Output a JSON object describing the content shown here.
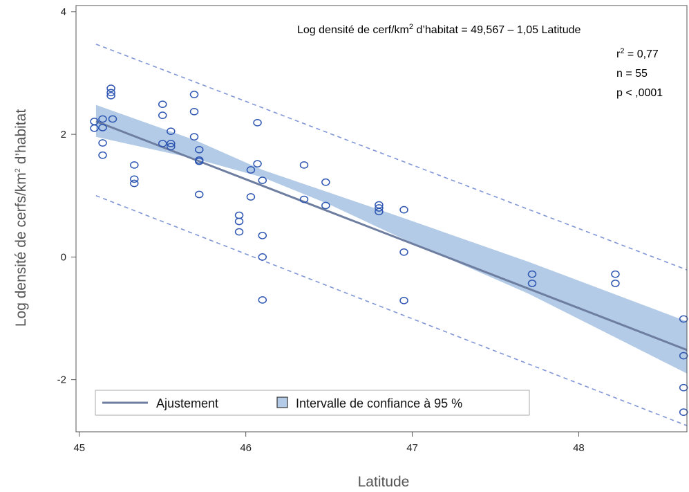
{
  "chart_data": {
    "type": "scatter",
    "xlabel": "Latitude",
    "ylabel_parts": {
      "before": "Log densité de cerfs/km",
      "sup": "2",
      "after": " d’habitat"
    },
    "xlim": [
      44.98,
      48.65
    ],
    "ylim": [
      -2.85,
      4.1
    ],
    "x_ticks": [
      45,
      46,
      47,
      48
    ],
    "y_ticks": [
      -2,
      0,
      2,
      4
    ],
    "x_tick_labels": [
      "45",
      "46",
      "47",
      "48"
    ],
    "y_tick_labels": [
      "-2",
      "0",
      "2",
      "4"
    ],
    "grid": false,
    "equation_parts": {
      "before": "Log densité de cerf/km",
      "sup": "2",
      "after": " d’habitat = 49,567 – 1,05 Latitude"
    },
    "stats": {
      "r2_parts": {
        "before": "r",
        "sup": "2",
        "after": " = 0,77"
      },
      "n": "n = 55",
      "p": "p < ,0001"
    },
    "fit": {
      "intercept": 49.567,
      "slope": -1.05,
      "x_range": [
        45.1,
        48.65
      ]
    },
    "confidence_band": [
      [
        45.1,
        2.48,
        1.96
      ],
      [
        45.7,
        1.9,
        1.6
      ],
      [
        46.1,
        1.42,
        1.3
      ],
      [
        46.5,
        1.05,
        0.86
      ],
      [
        46.9,
        0.68,
        0.35
      ],
      [
        47.7,
        -0.08,
        -0.6
      ],
      [
        48.65,
        -1.05,
        -1.9
      ]
    ],
    "prediction_upper": [
      [
        45.1,
        3.47
      ],
      [
        48.65,
        -0.21
      ]
    ],
    "prediction_lower": [
      [
        45.1,
        1.0
      ],
      [
        48.65,
        -2.75
      ]
    ],
    "points": [
      [
        45.09,
        2.21
      ],
      [
        45.09,
        2.1
      ],
      [
        45.14,
        2.25
      ],
      [
        45.14,
        2.11
      ],
      [
        45.14,
        1.86
      ],
      [
        45.14,
        1.66
      ],
      [
        45.19,
        2.75
      ],
      [
        45.19,
        2.68
      ],
      [
        45.19,
        2.63
      ],
      [
        45.2,
        2.25
      ],
      [
        45.33,
        1.5
      ],
      [
        45.33,
        1.27
      ],
      [
        45.33,
        1.2
      ],
      [
        45.5,
        2.49
      ],
      [
        45.5,
        2.31
      ],
      [
        45.5,
        1.85
      ],
      [
        45.55,
        2.05
      ],
      [
        45.55,
        1.85
      ],
      [
        45.55,
        1.8
      ],
      [
        45.69,
        2.65
      ],
      [
        45.69,
        2.37
      ],
      [
        45.69,
        1.96
      ],
      [
        45.72,
        1.75
      ],
      [
        45.72,
        1.58
      ],
      [
        45.72,
        1.56
      ],
      [
        45.72,
        1.02
      ],
      [
        45.96,
        0.68
      ],
      [
        45.96,
        0.58
      ],
      [
        45.96,
        0.41
      ],
      [
        46.03,
        1.42
      ],
      [
        46.03,
        0.98
      ],
      [
        46.07,
        2.19
      ],
      [
        46.07,
        1.52
      ],
      [
        46.1,
        1.25
      ],
      [
        46.1,
        0.35
      ],
      [
        46.1,
        0.0
      ],
      [
        46.1,
        -0.7
      ],
      [
        46.35,
        1.5
      ],
      [
        46.35,
        0.94
      ],
      [
        46.48,
        1.22
      ],
      [
        46.48,
        0.84
      ],
      [
        46.8,
        0.85
      ],
      [
        46.8,
        0.8
      ],
      [
        46.8,
        0.74
      ],
      [
        46.95,
        0.77
      ],
      [
        46.95,
        0.08
      ],
      [
        46.95,
        -0.71
      ],
      [
        47.72,
        -0.28
      ],
      [
        47.72,
        -0.43
      ],
      [
        48.22,
        -0.28
      ],
      [
        48.22,
        -0.43
      ],
      [
        48.63,
        -1.01
      ],
      [
        48.63,
        -1.61
      ],
      [
        48.63,
        -2.13
      ],
      [
        48.63,
        -2.53
      ]
    ],
    "legend": {
      "position": "bottom-left",
      "fit_label": "Ajustement",
      "ci_label": "Intervalle de confiance à 95 %"
    },
    "colors": {
      "band": "#b3cbe6",
      "fit_line": "#6e7ea0",
      "prediction": "#7f95d6",
      "points": "#2d55b2",
      "axis": "#555555"
    }
  }
}
